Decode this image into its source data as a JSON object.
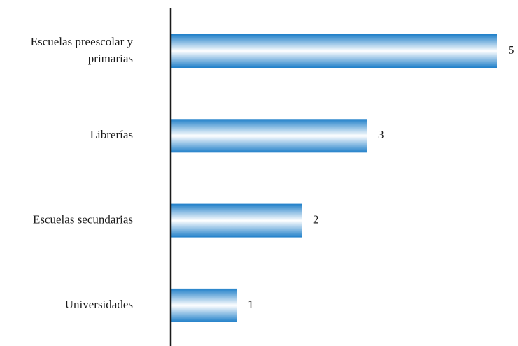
{
  "chart_data": {
    "type": "bar",
    "orientation": "horizontal",
    "categories": [
      [
        "Escuelas preescolar y",
        "primarias"
      ],
      [
        "Librerías"
      ],
      [
        "Escuelas secundarias"
      ],
      [
        "Universidades"
      ]
    ],
    "values": [
      5,
      3,
      2,
      1
    ],
    "title": "",
    "xlabel": "",
    "ylabel": "",
    "xlim": [
      0,
      5
    ],
    "grid": false,
    "legend": "none",
    "data_labels": [
      "5",
      "3",
      "2",
      "1"
    ],
    "colors": {
      "bar_edge": "#1f7fc9",
      "bar_highlight": "#ffffff",
      "axis": "#1a1a1a",
      "text": "#1a1a1a"
    }
  }
}
